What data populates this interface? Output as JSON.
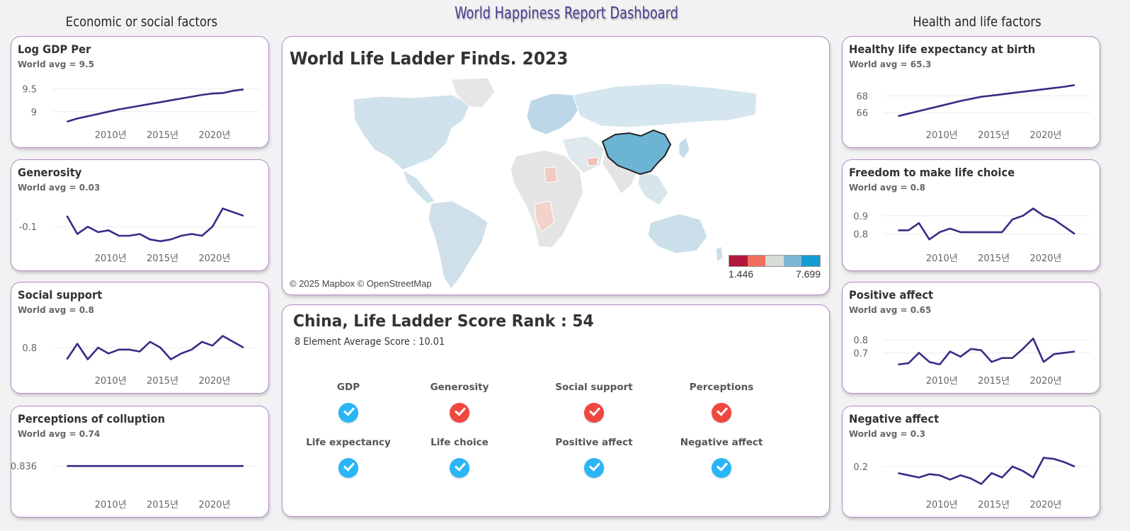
{
  "dashboard_title": "World Happiness Report Dashboard",
  "left_column_title": "Economic or social factors",
  "right_column_title": "Health and life factors",
  "colors": {
    "line": "#3b2a86",
    "border": "#b58bc9",
    "good": "#29b6f6",
    "bad": "#f0473e",
    "highlight": "#6cb4d3"
  },
  "cards": [
    {
      "title": "Log GDP Per",
      "subtitle": "World avg = 9.5",
      "y_ticks": [
        {
          "label": "9.5",
          "v": 9.5
        },
        {
          "label": "9",
          "v": 9.0
        }
      ],
      "ylim": [
        8.7,
        9.9
      ],
      "x_ticks": [
        "2010년",
        "2015년",
        "2020년"
      ],
      "chart_data": {
        "type": "line",
        "x": [
          2006,
          2007,
          2008,
          2009,
          2010,
          2011,
          2012,
          2013,
          2014,
          2015,
          2016,
          2017,
          2018,
          2019,
          2020,
          2021,
          2022,
          2023
        ],
        "values": [
          8.78,
          8.85,
          8.9,
          8.95,
          9.0,
          9.05,
          9.09,
          9.13,
          9.17,
          9.21,
          9.25,
          9.29,
          9.33,
          9.37,
          9.4,
          9.41,
          9.46,
          9.49
        ]
      }
    },
    {
      "title": "Generosity",
      "subtitle": "World avg = 0.03",
      "y_ticks": [
        {
          "label": "-0.1",
          "v": -0.1
        }
      ],
      "ylim": [
        -0.22,
        0.08
      ],
      "x_ticks": [
        "2010년",
        "2015년",
        "2020년"
      ],
      "chart_data": {
        "type": "line",
        "x": [
          2006,
          2007,
          2008,
          2009,
          2010,
          2011,
          2012,
          2013,
          2014,
          2015,
          2016,
          2017,
          2018,
          2019,
          2020,
          2021,
          2022,
          2023
        ],
        "values": [
          -0.04,
          -0.14,
          -0.1,
          -0.13,
          -0.12,
          -0.15,
          -0.15,
          -0.14,
          -0.17,
          -0.18,
          -0.17,
          -0.15,
          -0.14,
          -0.15,
          -0.1,
          0.0,
          -0.02,
          -0.04
        ]
      }
    },
    {
      "title": "Social support",
      "subtitle": "World avg = 0.8",
      "y_ticks": [
        {
          "label": "0.8",
          "v": 0.8
        }
      ],
      "ylim": [
        0.68,
        0.96
      ],
      "x_ticks": [
        "2010년",
        "2015년",
        "2020년"
      ],
      "chart_data": {
        "type": "line",
        "x": [
          2006,
          2007,
          2008,
          2009,
          2010,
          2011,
          2012,
          2013,
          2014,
          2015,
          2016,
          2017,
          2018,
          2019,
          2020,
          2021,
          2022,
          2023
        ],
        "values": [
          0.74,
          0.82,
          0.74,
          0.8,
          0.77,
          0.79,
          0.79,
          0.78,
          0.83,
          0.8,
          0.74,
          0.77,
          0.79,
          0.83,
          0.81,
          0.86,
          0.83,
          0.8
        ]
      }
    },
    {
      "title": "Perceptions of colluption",
      "subtitle": "World avg = 0.74",
      "y_ticks": [
        {
          "label": "0.836",
          "v": 0.836
        }
      ],
      "ylim": [
        0.73,
        0.93
      ],
      "x_ticks": [
        "2010년",
        "2015년",
        "2020년"
      ],
      "chart_data": {
        "type": "line",
        "x": [
          2006,
          2023
        ],
        "values": [
          0.836,
          0.836
        ]
      }
    },
    {
      "title": "Healthy life expectancy at birth",
      "subtitle": "World avg = 65.3",
      "y_ticks": [
        {
          "label": "68",
          "v": 68
        },
        {
          "label": "66",
          "v": 66
        }
      ],
      "ylim": [
        64.5,
        71.0
      ],
      "x_ticks": [
        "2010년",
        "2015년",
        "2020년"
      ],
      "chart_data": {
        "type": "line",
        "x": [
          2006,
          2008,
          2010,
          2012,
          2014,
          2016,
          2018,
          2020,
          2022,
          2023
        ],
        "values": [
          65.6,
          66.2,
          66.8,
          67.4,
          67.9,
          68.2,
          68.5,
          68.8,
          69.1,
          69.3
        ]
      }
    },
    {
      "title": "Freedom to make life choice",
      "subtitle": "World avg = 0.8",
      "y_ticks": [
        {
          "label": "0.9",
          "v": 0.9
        },
        {
          "label": "0.8",
          "v": 0.8
        }
      ],
      "ylim": [
        0.72,
        1.02
      ],
      "x_ticks": [
        "2010년",
        "2015년",
        "2020년"
      ],
      "chart_data": {
        "type": "line",
        "x": [
          2006,
          2007,
          2008,
          2009,
          2010,
          2011,
          2012,
          2013,
          2014,
          2015,
          2016,
          2017,
          2018,
          2019,
          2020,
          2021,
          2022,
          2023
        ],
        "values": [
          0.82,
          0.82,
          0.86,
          0.77,
          0.81,
          0.83,
          0.81,
          0.81,
          0.81,
          0.81,
          0.81,
          0.88,
          0.9,
          0.94,
          0.9,
          0.88,
          0.84,
          0.8
        ]
      }
    },
    {
      "title": "Positive affect",
      "subtitle": "World avg = 0.65",
      "y_ticks": [
        {
          "label": "0.8",
          "v": 0.8
        },
        {
          "label": "0.7",
          "v": 0.7
        }
      ],
      "ylim": [
        0.56,
        0.98
      ],
      "x_ticks": [
        "2010년",
        "2015년",
        "2020년"
      ],
      "chart_data": {
        "type": "line",
        "x": [
          2006,
          2007,
          2008,
          2009,
          2010,
          2011,
          2012,
          2013,
          2014,
          2015,
          2016,
          2017,
          2018,
          2019,
          2020,
          2021,
          2022,
          2023
        ],
        "values": [
          0.61,
          0.62,
          0.7,
          0.63,
          0.61,
          0.71,
          0.67,
          0.73,
          0.72,
          0.63,
          0.66,
          0.66,
          0.73,
          0.81,
          0.63,
          0.69,
          0.7,
          0.71
        ]
      }
    },
    {
      "title": "Negative affect",
      "subtitle": "World avg = 0.3",
      "y_ticks": [
        {
          "label": "0.2",
          "v": 0.2
        }
      ],
      "ylim": [
        0.07,
        0.32
      ],
      "x_ticks": [
        "2010년",
        "2015년",
        "2020년"
      ],
      "chart_data": {
        "type": "line",
        "x": [
          2006,
          2007,
          2008,
          2009,
          2010,
          2011,
          2012,
          2013,
          2014,
          2015,
          2016,
          2017,
          2018,
          2019,
          2020,
          2021,
          2022,
          2023
        ],
        "values": [
          0.17,
          0.16,
          0.15,
          0.165,
          0.16,
          0.14,
          0.16,
          0.145,
          0.12,
          0.17,
          0.15,
          0.2,
          0.18,
          0.15,
          0.24,
          0.235,
          0.22,
          0.2
        ]
      }
    }
  ],
  "map": {
    "title": "World Life Ladder Finds. 2023",
    "attribution": "© 2025 Mapbox © OpenStreetMap",
    "legend_min": "1.446",
    "legend_max": "7.699",
    "legend_colors": [
      "#b3173b",
      "#f06d5d",
      "#d6ddd4",
      "#7ab8d6",
      "#149bd0"
    ],
    "highlight_country": "China"
  },
  "rank": {
    "title": "China, Life Ladder Score Rank : 54",
    "subtitle": "8 Element Average Score : 10.01",
    "elements": [
      {
        "label": "GDP",
        "status": "good"
      },
      {
        "label": "Generosity",
        "status": "bad"
      },
      {
        "label": "Social support",
        "status": "bad"
      },
      {
        "label": "Perceptions",
        "status": "bad"
      },
      {
        "label": "Life expectancy",
        "status": "good"
      },
      {
        "label": "Life choice",
        "status": "good"
      },
      {
        "label": "Positive affect",
        "status": "good"
      },
      {
        "label": "Negative affect",
        "status": "good"
      }
    ]
  }
}
